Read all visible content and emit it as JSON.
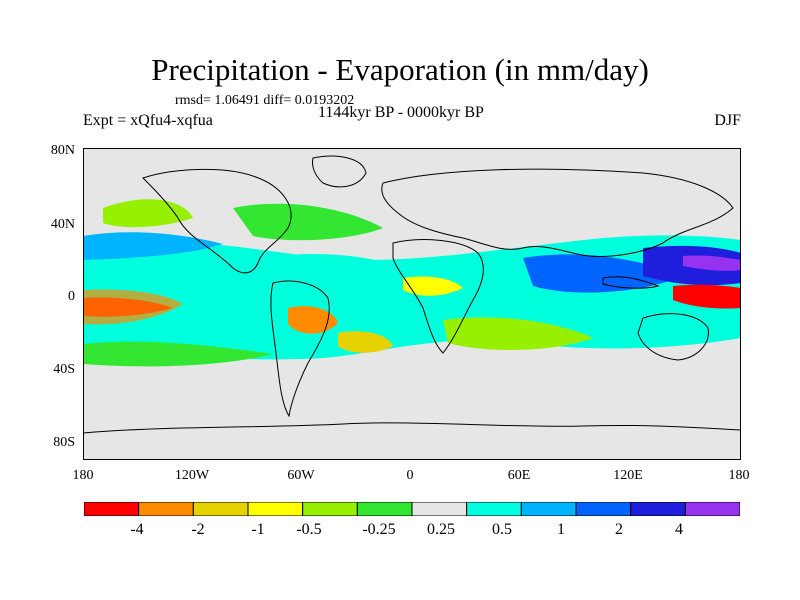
{
  "title": "Precipitation - Evaporation (in mm/day)",
  "stats": "rmsd= 1.06491  diff= 0.0193202",
  "period": "1144kyr BP - 0000kyr BP",
  "experiment": "Expt = xQfu4-xqfua",
  "season": "DJF",
  "lat_labels": [
    "80N",
    "40N",
    "0",
    "40S",
    "80S"
  ],
  "lon_labels": [
    "180",
    "120W",
    "60W",
    "0",
    "60E",
    "120E",
    "180"
  ],
  "colorbar": {
    "colors": [
      "#ff0000",
      "#ff8c00",
      "#e6d200",
      "#ffff00",
      "#96f000",
      "#32e632",
      "#e6e6e6",
      "#00ffdc",
      "#00b4ff",
      "#0064ff",
      "#1e1edc",
      "#9632f0"
    ],
    "labels": [
      "-4",
      "-2",
      "-1",
      "-0.5",
      "-0.25",
      "0.25",
      "0.5",
      "1",
      "2",
      "4"
    ]
  },
  "map_background_color": "#e6e6e6"
}
